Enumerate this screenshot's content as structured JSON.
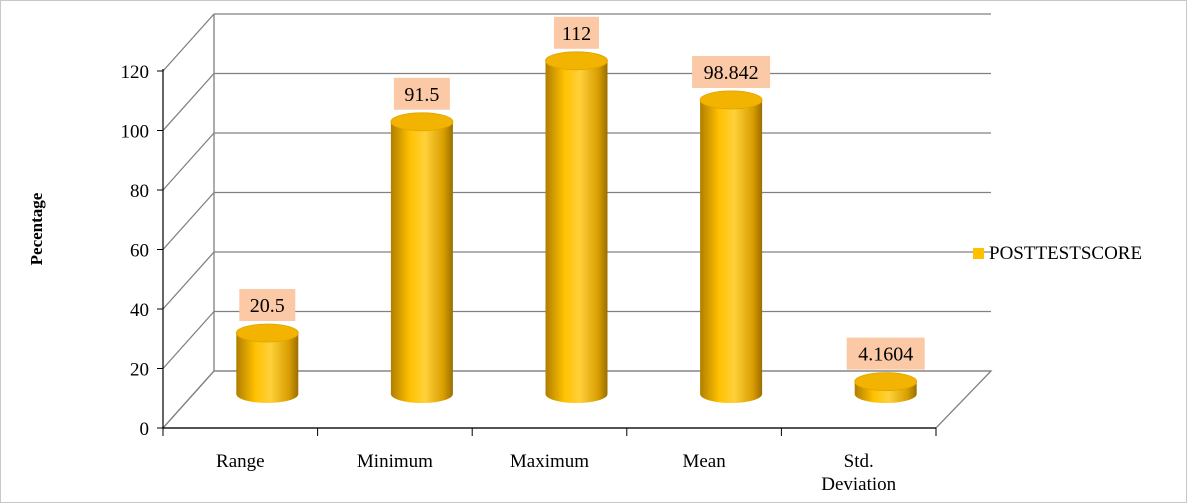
{
  "chart_data": {
    "type": "bar",
    "categories": [
      "Range",
      "Minimum",
      "Maximum",
      "Mean",
      "Std. Deviation"
    ],
    "series": [
      {
        "name": "POSTTESTSCORE",
        "values": [
          20.5,
          91.5,
          112,
          98.842,
          4.1604
        ]
      }
    ],
    "data_labels": [
      "20.5",
      "91.5",
      "112",
      "98.842",
      "4.1604"
    ],
    "ylabel": "Pecentage",
    "xlabel": "",
    "ylim": [
      0,
      120
    ],
    "yticks": [
      0,
      20,
      40,
      60,
      80,
      100,
      120
    ],
    "grid": true,
    "legend_position": "right",
    "style": "3d-cylinder",
    "colors": {
      "bar": "#ffc000",
      "bar_dark": "#b88600",
      "label_box": "#fbc9a6",
      "grid": "#808080"
    }
  }
}
